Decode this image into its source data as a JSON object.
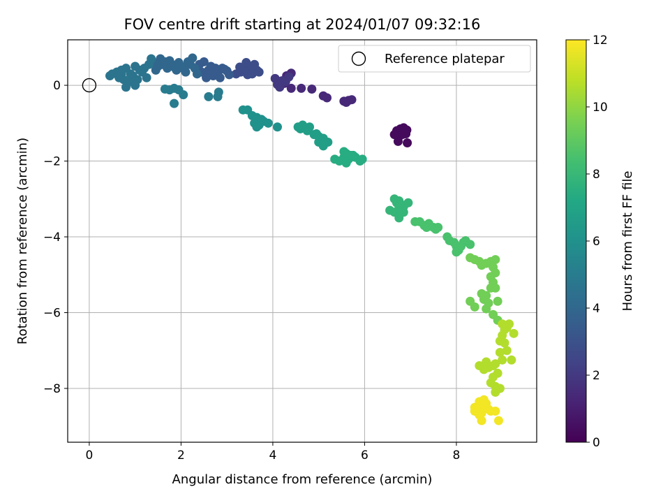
{
  "chart_data": {
    "type": "scatter",
    "title": "FOV centre drift starting at 2024/01/07 09:32:16",
    "xlabel": "Angular distance from reference (arcmin)",
    "ylabel": "Rotation from reference (arcmin)",
    "xlim": [
      -0.47,
      9.75
    ],
    "ylim": [
      -9.42,
      1.2
    ],
    "xticks": [
      0,
      2,
      4,
      6,
      8
    ],
    "yticks": [
      0,
      -2,
      -4,
      -6,
      -8
    ],
    "grid": true,
    "legend": {
      "placement": "top-right",
      "entries": [
        "Reference platepar"
      ]
    },
    "reference_point": {
      "x": 0,
      "y": 0
    },
    "colorbar": {
      "label": "Hours from first FF file",
      "range": [
        0,
        12
      ],
      "ticks": [
        0,
        2,
        4,
        6,
        8,
        10,
        12
      ],
      "colormap": "viridis"
    },
    "series": [
      {
        "hours": 0.3,
        "points": [
          [
            6.72,
            -1.28
          ],
          [
            6.78,
            -1.15
          ],
          [
            6.85,
            -1.12
          ],
          [
            6.7,
            -1.2
          ],
          [
            6.82,
            -1.3
          ],
          [
            6.88,
            -1.25
          ],
          [
            6.75,
            -1.35
          ],
          [
            6.8,
            -1.22
          ],
          [
            6.92,
            -1.18
          ],
          [
            6.73,
            -1.48
          ],
          [
            6.93,
            -1.52
          ],
          [
            6.65,
            -1.3
          ],
          [
            6.9,
            -1.28
          ]
        ]
      },
      {
        "hours": 1.4,
        "points": [
          [
            5.55,
            -0.42
          ],
          [
            5.6,
            -0.45
          ],
          [
            5.65,
            -0.4
          ],
          [
            5.72,
            -0.38
          ],
          [
            5.1,
            -0.28
          ],
          [
            5.18,
            -0.33
          ],
          [
            4.85,
            -0.1
          ],
          [
            4.62,
            -0.08
          ],
          [
            4.4,
            -0.08
          ],
          [
            4.25,
            0.05
          ],
          [
            4.3,
            0.25
          ],
          [
            4.4,
            0.32
          ]
        ]
      },
      {
        "hours": 2.0,
        "points": [
          [
            4.05,
            0.18
          ],
          [
            4.1,
            0.02
          ],
          [
            4.15,
            -0.05
          ],
          [
            4.2,
            0.12
          ],
          [
            4.35,
            0.22
          ],
          [
            4.28,
            0.1
          ]
        ]
      },
      {
        "hours": 2.8,
        "points": [
          [
            3.3,
            0.35
          ],
          [
            3.4,
            0.42
          ],
          [
            3.5,
            0.45
          ],
          [
            3.42,
            0.6
          ],
          [
            3.55,
            0.3
          ],
          [
            3.6,
            0.55
          ],
          [
            3.65,
            0.4
          ],
          [
            3.7,
            0.35
          ],
          [
            3.2,
            0.3
          ],
          [
            3.28,
            0.48
          ],
          [
            3.55,
            0.5
          ],
          [
            3.45,
            0.28
          ]
        ]
      },
      {
        "hours": 3.4,
        "points": [
          [
            2.45,
            0.35
          ],
          [
            2.55,
            0.2
          ],
          [
            2.6,
            0.4
          ],
          [
            2.7,
            0.25
          ],
          [
            2.8,
            0.3
          ],
          [
            2.9,
            0.45
          ],
          [
            3.0,
            0.38
          ],
          [
            2.4,
            0.55
          ],
          [
            2.65,
            0.5
          ],
          [
            2.85,
            0.2
          ],
          [
            2.95,
            0.42
          ],
          [
            3.05,
            0.28
          ],
          [
            2.5,
            0.62
          ],
          [
            2.75,
            0.45
          ]
        ]
      },
      {
        "hours": 4.0,
        "points": [
          [
            1.4,
            0.6
          ],
          [
            1.5,
            0.5
          ],
          [
            1.6,
            0.55
          ],
          [
            1.7,
            0.45
          ],
          [
            1.8,
            0.55
          ],
          [
            1.9,
            0.4
          ],
          [
            2.0,
            0.5
          ],
          [
            2.1,
            0.35
          ],
          [
            2.2,
            0.55
          ],
          [
            2.3,
            0.45
          ],
          [
            1.55,
            0.7
          ],
          [
            1.65,
            0.62
          ],
          [
            1.85,
            0.48
          ],
          [
            1.95,
            0.6
          ],
          [
            2.05,
            0.45
          ],
          [
            2.15,
            0.62
          ],
          [
            2.25,
            0.72
          ],
          [
            2.35,
            0.3
          ],
          [
            1.45,
            0.4
          ],
          [
            1.75,
            0.65
          ]
        ]
      },
      {
        "hours": 4.6,
        "points": [
          [
            0.45,
            0.25
          ],
          [
            0.5,
            0.3
          ],
          [
            0.6,
            0.35
          ],
          [
            0.7,
            0.4
          ],
          [
            0.8,
            0.45
          ],
          [
            0.9,
            0.3
          ],
          [
            1.0,
            0.5
          ],
          [
            1.1,
            0.4
          ],
          [
            1.2,
            0.45
          ],
          [
            1.3,
            0.55
          ],
          [
            1.35,
            0.7
          ],
          [
            0.65,
            0.2
          ],
          [
            0.75,
            0.15
          ],
          [
            0.85,
            0.1
          ],
          [
            0.95,
            0.25
          ],
          [
            1.05,
            0.15
          ],
          [
            1.15,
            0.35
          ],
          [
            1.25,
            0.2
          ],
          [
            0.8,
            -0.05
          ],
          [
            1.0,
            0.0
          ],
          [
            0.7,
            0.3
          ],
          [
            0.9,
            0.1
          ]
        ]
      },
      {
        "hours": 5.0,
        "points": [
          [
            1.65,
            -0.1
          ],
          [
            1.75,
            -0.12
          ],
          [
            1.85,
            -0.08
          ],
          [
            1.95,
            -0.12
          ],
          [
            2.05,
            -0.25
          ],
          [
            1.85,
            -0.48
          ],
          [
            2.6,
            -0.3
          ],
          [
            2.8,
            -0.3
          ],
          [
            2.82,
            -0.18
          ]
        ]
      },
      {
        "hours": 6.0,
        "points": [
          [
            3.35,
            -0.65
          ],
          [
            3.45,
            -0.65
          ],
          [
            3.55,
            -0.8
          ],
          [
            3.65,
            -0.85
          ],
          [
            3.7,
            -1.05
          ],
          [
            3.6,
            -1.0
          ],
          [
            3.75,
            -0.9
          ],
          [
            3.9,
            -1.0
          ],
          [
            4.1,
            -1.1
          ],
          [
            3.8,
            -0.95
          ],
          [
            3.65,
            -1.1
          ]
        ]
      },
      {
        "hours": 6.7,
        "points": [
          [
            4.55,
            -1.1
          ],
          [
            4.6,
            -1.15
          ],
          [
            4.65,
            -1.05
          ],
          [
            4.75,
            -1.2
          ],
          [
            4.8,
            -1.1
          ],
          [
            4.9,
            -1.3
          ],
          [
            5.0,
            -1.35
          ],
          [
            5.1,
            -1.4
          ],
          [
            5.0,
            -1.5
          ],
          [
            5.2,
            -1.5
          ],
          [
            5.1,
            -1.6
          ],
          [
            4.95,
            -1.28
          ]
        ]
      },
      {
        "hours": 7.4,
        "points": [
          [
            5.35,
            -1.95
          ],
          [
            5.45,
            -2.0
          ],
          [
            5.55,
            -1.9
          ],
          [
            5.6,
            -1.8
          ],
          [
            5.65,
            -1.95
          ],
          [
            5.7,
            -1.85
          ],
          [
            5.75,
            -1.85
          ],
          [
            5.55,
            -1.75
          ],
          [
            5.9,
            -2.0
          ],
          [
            5.95,
            -1.95
          ],
          [
            5.6,
            -2.05
          ],
          [
            5.8,
            -1.9
          ]
        ]
      },
      {
        "hours": 7.9,
        "points": [
          [
            6.65,
            -3.0
          ],
          [
            6.7,
            -3.1
          ],
          [
            6.75,
            -3.05
          ],
          [
            6.8,
            -3.15
          ],
          [
            6.85,
            -3.2
          ],
          [
            6.75,
            -3.25
          ],
          [
            6.55,
            -3.3
          ],
          [
            6.65,
            -3.35
          ],
          [
            6.75,
            -3.4
          ],
          [
            6.85,
            -3.35
          ],
          [
            6.75,
            -3.5
          ],
          [
            6.95,
            -3.1
          ]
        ]
      },
      {
        "hours": 8.5,
        "points": [
          [
            7.1,
            -3.6
          ],
          [
            7.2,
            -3.6
          ],
          [
            7.3,
            -3.7
          ],
          [
            7.4,
            -3.65
          ],
          [
            7.35,
            -3.75
          ],
          [
            7.5,
            -3.75
          ],
          [
            7.6,
            -3.75
          ],
          [
            7.55,
            -3.8
          ],
          [
            7.8,
            -4.0
          ],
          [
            7.85,
            -4.1
          ],
          [
            7.95,
            -4.15
          ],
          [
            8.0,
            -4.25
          ],
          [
            8.05,
            -4.35
          ],
          [
            8.1,
            -4.25
          ],
          [
            8.15,
            -4.15
          ],
          [
            8.3,
            -4.2
          ],
          [
            8.2,
            -4.1
          ],
          [
            8.0,
            -4.4
          ]
        ]
      },
      {
        "hours": 9.4,
        "points": [
          [
            8.3,
            -4.55
          ],
          [
            8.4,
            -4.6
          ],
          [
            8.5,
            -4.65
          ],
          [
            8.55,
            -4.75
          ],
          [
            8.65,
            -4.7
          ],
          [
            8.75,
            -4.65
          ],
          [
            8.85,
            -4.6
          ],
          [
            8.8,
            -4.8
          ],
          [
            8.85,
            -4.95
          ],
          [
            8.75,
            -5.05
          ],
          [
            8.8,
            -5.2
          ],
          [
            8.85,
            -5.35
          ],
          [
            8.75,
            -5.35
          ],
          [
            8.55,
            -5.5
          ],
          [
            8.65,
            -5.55
          ],
          [
            8.6,
            -5.65
          ],
          [
            8.7,
            -5.75
          ],
          [
            8.9,
            -5.7
          ],
          [
            8.3,
            -5.7
          ],
          [
            8.4,
            -5.85
          ],
          [
            8.65,
            -5.9
          ],
          [
            8.8,
            -6.05
          ],
          [
            8.9,
            -6.2
          ]
        ]
      },
      {
        "hours": 10.6,
        "points": [
          [
            9.0,
            -6.3
          ],
          [
            9.05,
            -6.45
          ],
          [
            9.1,
            -6.4
          ],
          [
            9.15,
            -6.3
          ],
          [
            9.25,
            -6.55
          ],
          [
            9.0,
            -6.6
          ],
          [
            8.95,
            -6.75
          ],
          [
            9.05,
            -6.8
          ],
          [
            8.95,
            -7.05
          ],
          [
            9.1,
            -7.0
          ],
          [
            9.2,
            -7.25
          ],
          [
            9.0,
            -7.25
          ],
          [
            8.85,
            -7.35
          ],
          [
            8.8,
            -7.4
          ],
          [
            8.7,
            -7.45
          ],
          [
            8.6,
            -7.5
          ],
          [
            8.5,
            -7.4
          ],
          [
            8.65,
            -7.3
          ],
          [
            8.9,
            -7.6
          ],
          [
            8.8,
            -7.7
          ],
          [
            8.75,
            -7.85
          ],
          [
            8.85,
            -7.95
          ],
          [
            8.95,
            -8.0
          ],
          [
            8.85,
            -8.1
          ]
        ]
      },
      {
        "hours": 11.8,
        "points": [
          [
            8.5,
            -8.35
          ],
          [
            8.55,
            -8.45
          ],
          [
            8.6,
            -8.5
          ],
          [
            8.45,
            -8.55
          ],
          [
            8.4,
            -8.6
          ],
          [
            8.55,
            -8.65
          ],
          [
            8.5,
            -8.7
          ],
          [
            8.6,
            -8.3
          ],
          [
            8.65,
            -8.4
          ],
          [
            8.7,
            -8.55
          ],
          [
            8.55,
            -8.85
          ],
          [
            8.75,
            -8.6
          ],
          [
            8.4,
            -8.5
          ],
          [
            8.85,
            -8.6
          ],
          [
            8.92,
            -8.85
          ]
        ]
      }
    ]
  }
}
